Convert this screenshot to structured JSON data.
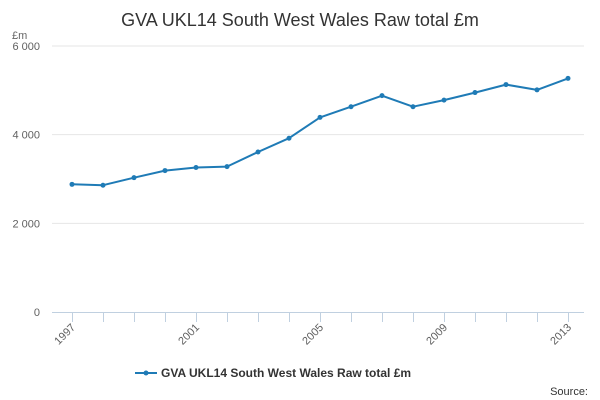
{
  "chart_data": {
    "type": "line",
    "title": "GVA UKL14 South West Wales Raw total £m",
    "unit_label": "£m",
    "x_ticks": [
      "1997",
      "2001",
      "2005",
      "2009",
      "2013"
    ],
    "y_ticks": [
      "0",
      "2 000",
      "4 000",
      "6 000"
    ],
    "ylim": [
      0,
      6000
    ],
    "xlim": [
      1997,
      2013
    ],
    "grid": true,
    "legend_position": "bottom",
    "source_label": "Source:",
    "series": [
      {
        "name": "GVA UKL14 South West Wales Raw total £m",
        "color": "#1f7bb6",
        "x": [
          1997,
          1998,
          1999,
          2000,
          2001,
          2002,
          2003,
          2004,
          2005,
          2006,
          2007,
          2008,
          2009,
          2010,
          2011,
          2012,
          2013
        ],
        "values": [
          2880,
          2860,
          3030,
          3190,
          3260,
          3280,
          3610,
          3920,
          4390,
          4630,
          4880,
          4630,
          4780,
          4950,
          5130,
          5010,
          5270
        ]
      }
    ]
  }
}
